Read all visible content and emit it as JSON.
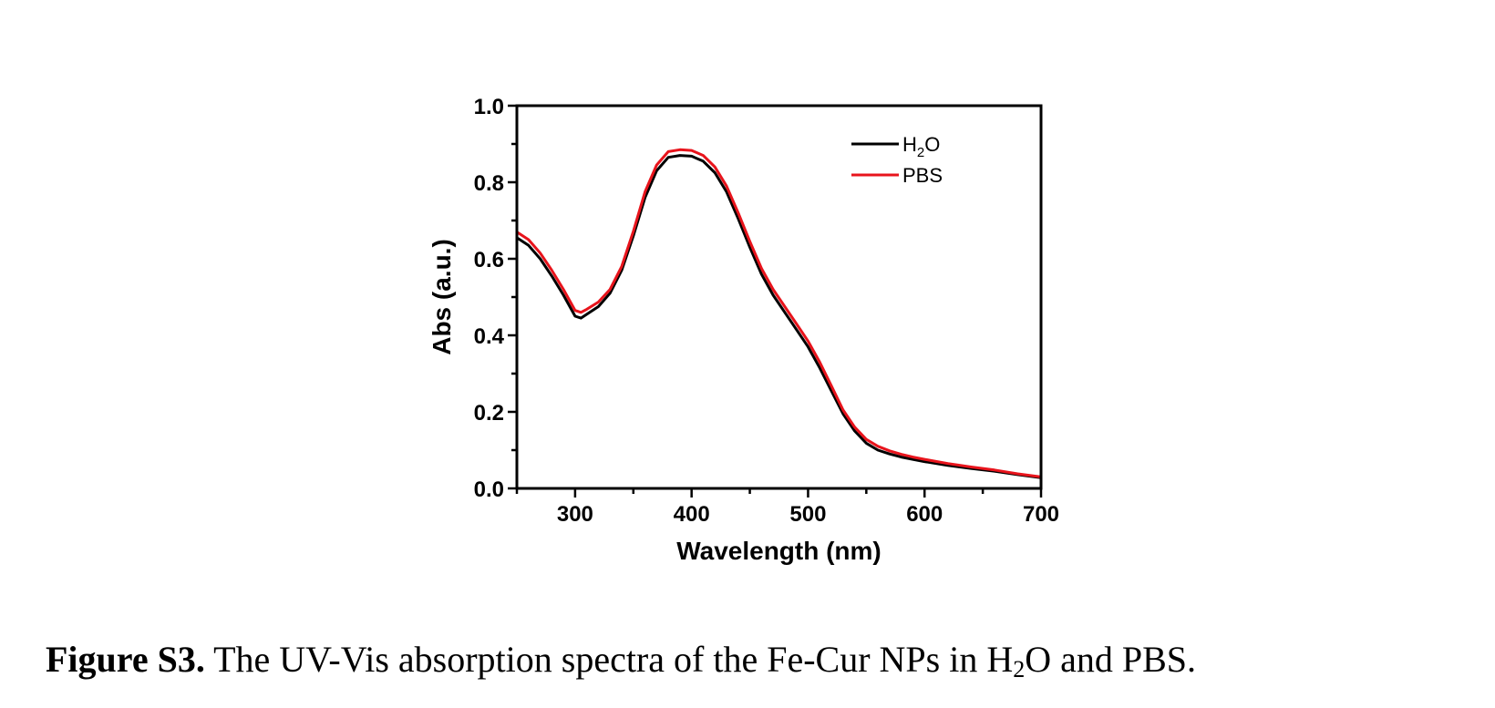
{
  "chart_data": {
    "type": "line",
    "xlabel": "Wavelength (nm)",
    "ylabel": "Abs (a.u.)",
    "xlim": [
      250,
      700
    ],
    "ylim": [
      0.0,
      1.0
    ],
    "xticks": [
      300,
      400,
      500,
      600,
      700
    ],
    "xtick_labels": [
      "300",
      "400",
      "500",
      "600",
      "700"
    ],
    "yticks": [
      0.0,
      0.2,
      0.4,
      0.6,
      0.8,
      1.0
    ],
    "ytick_labels": [
      "0.0",
      "0.2",
      "0.4",
      "0.6",
      "0.8",
      "1.0"
    ],
    "grid": false,
    "legend_position": "top-right",
    "series": [
      {
        "name": "H2O",
        "color": "#000000",
        "x": [
          250,
          260,
          270,
          280,
          290,
          300,
          305,
          310,
          320,
          330,
          340,
          350,
          360,
          370,
          380,
          390,
          400,
          410,
          420,
          430,
          440,
          450,
          460,
          470,
          480,
          490,
          500,
          510,
          520,
          530,
          540,
          550,
          560,
          570,
          580,
          590,
          600,
          620,
          640,
          660,
          680,
          700
        ],
        "y": [
          0.655,
          0.635,
          0.6,
          0.555,
          0.505,
          0.45,
          0.445,
          0.455,
          0.475,
          0.51,
          0.57,
          0.66,
          0.76,
          0.83,
          0.865,
          0.87,
          0.868,
          0.855,
          0.825,
          0.775,
          0.705,
          0.63,
          0.56,
          0.505,
          0.46,
          0.415,
          0.37,
          0.315,
          0.255,
          0.195,
          0.15,
          0.118,
          0.1,
          0.09,
          0.082,
          0.076,
          0.07,
          0.06,
          0.052,
          0.045,
          0.036,
          0.028
        ]
      },
      {
        "name": "PBS",
        "color": "#e8141c",
        "x": [
          250,
          260,
          270,
          280,
          290,
          300,
          305,
          310,
          320,
          330,
          340,
          350,
          360,
          370,
          380,
          390,
          400,
          410,
          420,
          430,
          440,
          450,
          460,
          470,
          480,
          490,
          500,
          510,
          520,
          530,
          540,
          550,
          560,
          570,
          580,
          590,
          600,
          620,
          640,
          660,
          680,
          700
        ],
        "y": [
          0.67,
          0.65,
          0.615,
          0.57,
          0.52,
          0.465,
          0.46,
          0.468,
          0.487,
          0.52,
          0.58,
          0.672,
          0.775,
          0.845,
          0.88,
          0.885,
          0.883,
          0.87,
          0.84,
          0.79,
          0.72,
          0.645,
          0.575,
          0.52,
          0.475,
          0.43,
          0.385,
          0.33,
          0.268,
          0.205,
          0.16,
          0.128,
          0.11,
          0.098,
          0.089,
          0.082,
          0.076,
          0.065,
          0.056,
          0.048,
          0.038,
          0.03
        ]
      }
    ],
    "legend": [
      {
        "text": "H2O",
        "base": "H",
        "sub": "2",
        "tail": "O"
      },
      {
        "text": "PBS",
        "base": "PBS",
        "sub": "",
        "tail": ""
      }
    ]
  },
  "caption": {
    "label": "Figure S3.",
    "text_before": " The UV-Vis absorption spectra of the Fe-Cur NPs in H",
    "sub": "2",
    "text_after": "O and PBS."
  }
}
